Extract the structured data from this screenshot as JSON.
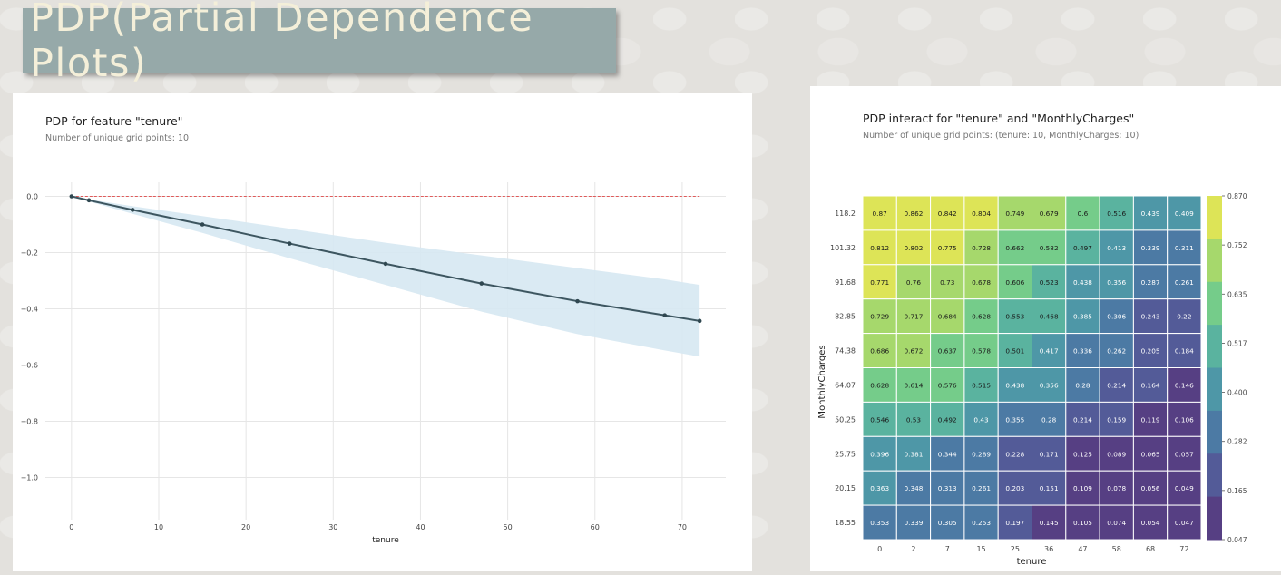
{
  "slide_title": "PDP(Partial Dependence Plots)",
  "colors": {
    "banner": "#96a9a9",
    "banner_text": "#f4efd9",
    "line": "#3d5660",
    "band": "#d6e8f2",
    "baseline": "#e05a5a"
  },
  "chart_data": [
    {
      "type": "line",
      "title": "PDP for feature \"tenure\"",
      "subtitle": "Number of unique grid points: 10",
      "xlabel": "tenure",
      "ylabel": "",
      "xlim": [
        -3,
        75
      ],
      "ylim": [
        -1.15,
        0.05
      ],
      "xticks": [
        0,
        10,
        20,
        30,
        40,
        50,
        60,
        70
      ],
      "yticks": [
        0.0,
        -0.2,
        -0.4,
        -0.6,
        -0.8,
        -1.0
      ],
      "ytick_labels": [
        "0.0",
        "−0.2",
        "−0.4",
        "−0.6",
        "−0.8",
        "−1.0"
      ],
      "grid": true,
      "x": [
        0,
        2,
        7,
        15,
        25,
        36,
        47,
        58,
        68,
        72
      ],
      "y": [
        0.0,
        -0.014,
        -0.048,
        -0.1,
        -0.168,
        -0.24,
        -0.31,
        -0.373,
        -0.423,
        -0.443
      ],
      "band_upper": [
        0.0,
        -0.011,
        -0.035,
        -0.07,
        -0.115,
        -0.165,
        -0.21,
        -0.255,
        -0.295,
        -0.315
      ],
      "band_lower": [
        0.0,
        -0.018,
        -0.062,
        -0.13,
        -0.22,
        -0.315,
        -0.41,
        -0.49,
        -0.548,
        -0.57
      ],
      "baseline": 0.0
    },
    {
      "type": "heatmap",
      "title": "PDP interact for \"tenure\" and \"MonthlyCharges\"",
      "subtitle": "Number of unique grid points: (tenure: 10, MonthlyCharges: 10)",
      "xlabel": "tenure",
      "ylabel": "MonthlyCharges",
      "x_categories": [
        "0",
        "2",
        "7",
        "15",
        "25",
        "36",
        "47",
        "58",
        "68",
        "72"
      ],
      "y_categories": [
        "118.2",
        "101.32",
        "91.68",
        "82.85",
        "74.38",
        "64.07",
        "50.25",
        "25.75",
        "20.15",
        "18.55"
      ],
      "values": [
        [
          "0.87",
          "0.862",
          "0.842",
          "0.804",
          "0.749",
          "0.679",
          "0.6",
          "0.516",
          "0.439",
          "0.409"
        ],
        [
          "0.812",
          "0.802",
          "0.775",
          "0.728",
          "0.662",
          "0.582",
          "0.497",
          "0.413",
          "0.339",
          "0.311"
        ],
        [
          "0.771",
          "0.76",
          "0.73",
          "0.678",
          "0.606",
          "0.523",
          "0.438",
          "0.356",
          "0.287",
          "0.261"
        ],
        [
          "0.729",
          "0.717",
          "0.684",
          "0.628",
          "0.553",
          "0.468",
          "0.385",
          "0.306",
          "0.243",
          "0.22"
        ],
        [
          "0.686",
          "0.672",
          "0.637",
          "0.578",
          "0.501",
          "0.417",
          "0.336",
          "0.262",
          "0.205",
          "0.184"
        ],
        [
          "0.628",
          "0.614",
          "0.576",
          "0.515",
          "0.438",
          "0.356",
          "0.28",
          "0.214",
          "0.164",
          "0.146"
        ],
        [
          "0.546",
          "0.53",
          "0.492",
          "0.43",
          "0.355",
          "0.28",
          "0.214",
          "0.159",
          "0.119",
          "0.106"
        ],
        [
          "0.396",
          "0.381",
          "0.344",
          "0.289",
          "0.228",
          "0.171",
          "0.125",
          "0.089",
          "0.065",
          "0.057"
        ],
        [
          "0.363",
          "0.348",
          "0.313",
          "0.261",
          "0.203",
          "0.151",
          "0.109",
          "0.078",
          "0.056",
          "0.049"
        ],
        [
          "0.353",
          "0.339",
          "0.305",
          "0.253",
          "0.197",
          "0.145",
          "0.105",
          "0.074",
          "0.054",
          "0.047"
        ]
      ],
      "colorbar_ticks": [
        "0.870",
        "0.752",
        "0.635",
        "0.517",
        "0.400",
        "0.282",
        "0.165",
        "0.047"
      ],
      "colorbar_colors": [
        "#dde457",
        "#a6d86c",
        "#75cc8a",
        "#5ab39f",
        "#4e97a7",
        "#4c7aa4",
        "#535b98",
        "#563f83"
      ],
      "vmin": 0.047,
      "vmax": 0.87
    }
  ]
}
